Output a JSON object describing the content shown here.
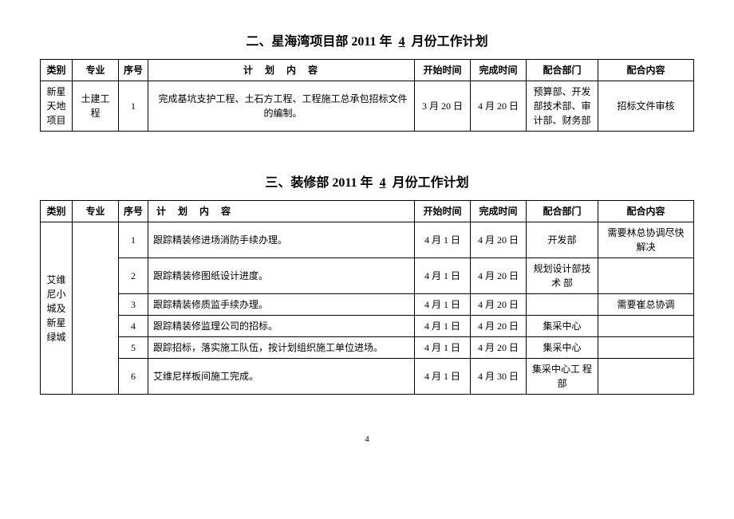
{
  "section1": {
    "title_prefix": "二、星海湾项目部",
    "title_year": "2011",
    "title_year_suffix": "年",
    "title_month": "4",
    "title_suffix": "月份工作计划",
    "headers": {
      "category": "类别",
      "specialty": "专业",
      "seq": "序号",
      "content": "计 划 内 容",
      "start": "开始时间",
      "end": "完成时间",
      "dept": "配合部门",
      "coop": "配合内容"
    },
    "rows": [
      {
        "category": "新星天地项目",
        "specialty": "土建工程",
        "seq": "1",
        "content": "完成基坑支护工程、土石方工程、工程施工总承包招标文件的编制。",
        "start": "3 月 20 日",
        "end": "4 月 20 日",
        "dept": "预算部、开发部技术部、审计部、财务部",
        "coop": "招标文件审核"
      }
    ]
  },
  "section2": {
    "title_prefix": "三、装修部",
    "title_year": "2011",
    "title_year_suffix": "年",
    "title_month": "4",
    "title_suffix": "月份工作计划",
    "headers": {
      "category": "类别",
      "specialty": "专业",
      "seq": "序号",
      "content": "计 划 内 容",
      "start": "开始时间",
      "end": "完成时间",
      "dept": "配合部门",
      "coop": "配合内容"
    },
    "category_merged": "艾维尼小城及新星绿城",
    "rows": [
      {
        "seq": "1",
        "content": "跟踪精装修进场消防手续办理。",
        "start": "4 月 1 日",
        "end": "4 月 20 日",
        "dept": "开发部",
        "coop": "需要林总协调尽快解决"
      },
      {
        "seq": "2",
        "content": "跟踪精装修图纸设计进度。",
        "start": "4 月 1 日",
        "end": "4 月 20 日",
        "dept": "规划设计部技 术 部",
        "coop": ""
      },
      {
        "seq": "3",
        "content": "跟踪精装修质监手续办理。",
        "start": "4 月 1 日",
        "end": "4 月 20 日",
        "dept": "",
        "coop": "需要崔总协调"
      },
      {
        "seq": "4",
        "content": "跟踪精装修监理公司的招标。",
        "start": "4 月 1 日",
        "end": "4 月 20 日",
        "dept": "集采中心",
        "coop": ""
      },
      {
        "seq": "5",
        "content": "跟踪招标，落实施工队伍，按计划组织施工单位进场。",
        "start": "4 月 1 日",
        "end": "4 月 20 日",
        "dept": "集采中心",
        "coop": ""
      },
      {
        "seq": "6",
        "content": "艾维尼样板间施工完成。",
        "start": "4 月 1 日",
        "end": "4 月 30 日",
        "dept": "集采中心工 程 部",
        "coop": ""
      }
    ]
  },
  "page_number": "4"
}
